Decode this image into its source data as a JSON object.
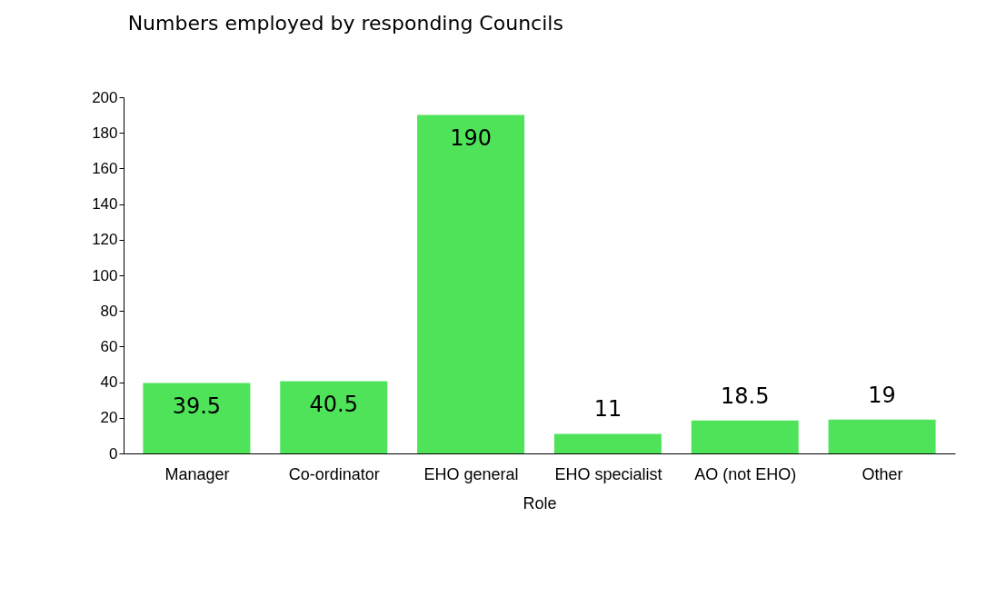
{
  "chart_data": {
    "type": "bar",
    "title": "Numbers employed by responding Councils",
    "xlabel": "Role",
    "categories": [
      "Manager",
      "Co-ordinator",
      "EHO general",
      "EHO specialist",
      "AO (not EHO)",
      "Other"
    ],
    "values": [
      39.5,
      40.5,
      190,
      11,
      18.5,
      19
    ],
    "color": "#4fe35a",
    "ylim": [
      0,
      200
    ],
    "yticks": [
      0,
      20,
      40,
      60,
      80,
      100,
      120,
      140,
      160,
      180,
      200
    ],
    "grid": false,
    "data_labels": true
  }
}
